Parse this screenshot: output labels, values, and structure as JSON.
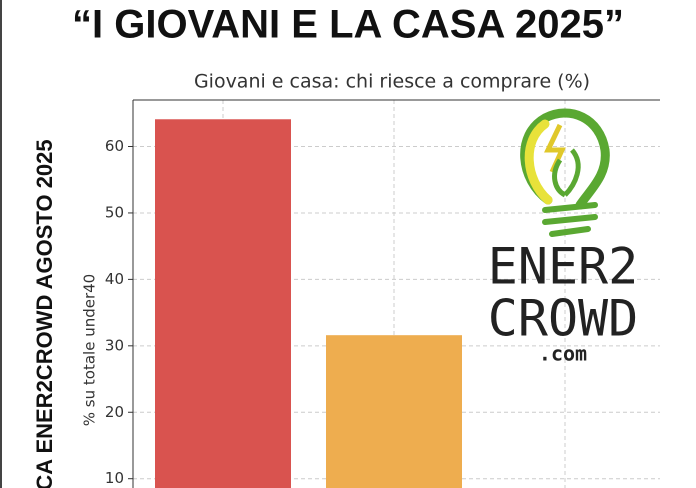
{
  "chart_data": {
    "type": "bar",
    "title": "“I GIOVANI E LA CASA 2025”",
    "subtitle": "Giovani e casa: chi riesce a comprare (%)",
    "y_label": "% su totale under40",
    "annotations": [
      "CA ENER2CROWD AGOSTO 2025",
      "ENER2",
      "CROWD",
      ".com"
    ],
    "categories": [
      null,
      null,
      null
    ],
    "values": [
      64.1,
      31.6,
      null
    ],
    "colors": [
      "#d9534f",
      "#eead4f",
      "#8fbf6a"
    ],
    "ylim": [
      8.6,
      67
    ],
    "yticks": [
      10,
      20,
      30,
      40,
      50,
      60
    ],
    "grid": true
  }
}
